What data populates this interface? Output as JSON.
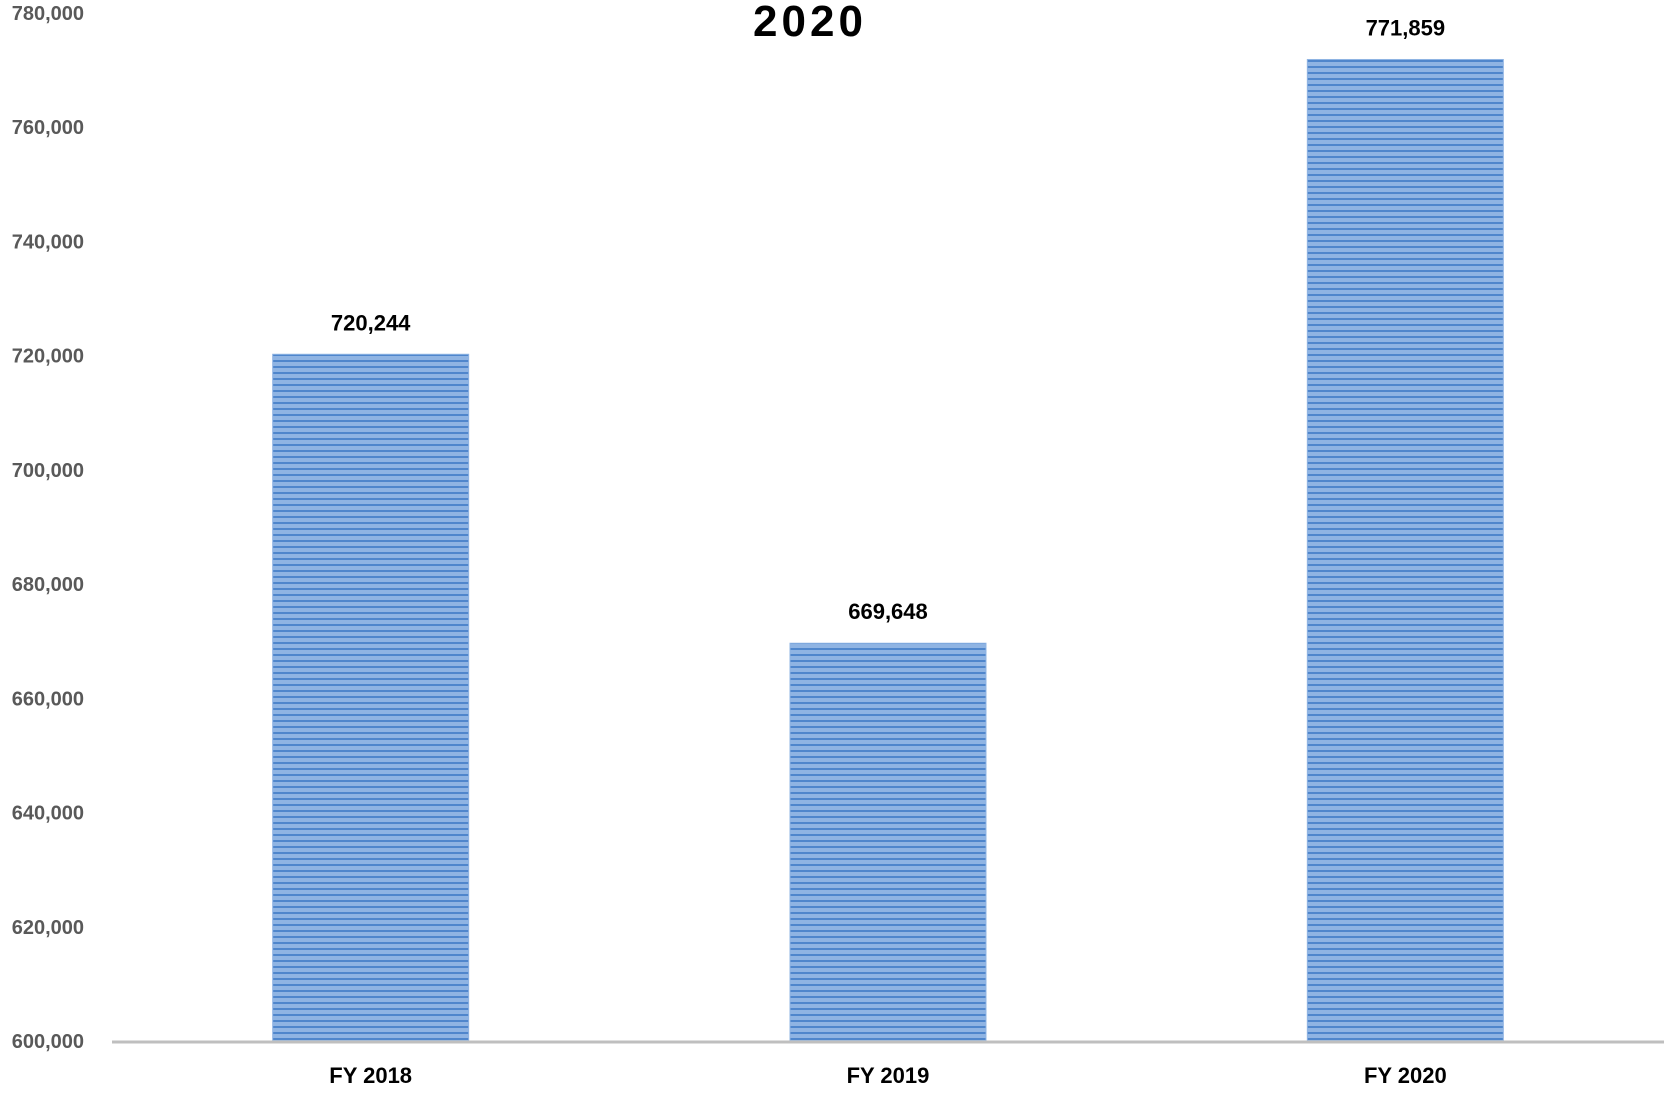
{
  "chart_data": {
    "type": "bar",
    "title": "2020",
    "xlabel": "",
    "ylabel": "",
    "categories": [
      "FY 2018",
      "FY 2019",
      "FY 2020"
    ],
    "values": [
      720244,
      669648,
      771859
    ],
    "data_labels": [
      "720,244",
      "669,648",
      "771,859"
    ],
    "ylim": [
      600000,
      780000
    ],
    "y_ticks": [
      600000,
      620000,
      640000,
      660000,
      680000,
      700000,
      720000,
      740000,
      760000,
      780000
    ],
    "y_tick_labels": [
      "600,000",
      "620,000",
      "640,000",
      "660,000",
      "680,000",
      "700,000",
      "720,000",
      "740,000",
      "760,000",
      "780,000"
    ],
    "grid": false,
    "legend": "none",
    "colors": {
      "bar_fill": "#8fb4e3",
      "bar_stripe": "#4f86cc",
      "axis_line": "#bfbfbf",
      "tick_label": "#595959"
    }
  }
}
